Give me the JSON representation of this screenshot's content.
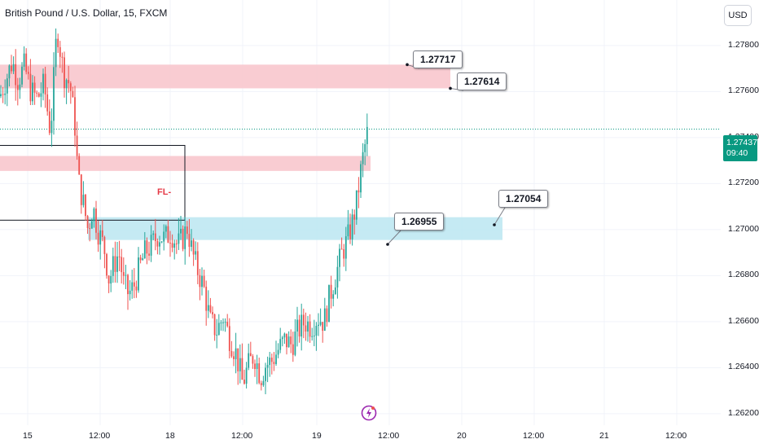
{
  "header": {
    "symbol_title": "British Pound / U.S. Dollar, 15, FXCM",
    "currency_button": "USD"
  },
  "price_badge": {
    "price": "1.27437",
    "countdown": "09:40"
  },
  "colors": {
    "up": "#26a69a",
    "down": "#ef5350",
    "supply_zone": "#f8c7cd",
    "demand_zone": "#bfe8f2",
    "current_price_line": "#089981"
  },
  "chart_data": {
    "type": "candlestick",
    "symbol": "GBPUSD",
    "timeframe": "15",
    "ylim": [
      1.2615,
      1.2792
    ],
    "y_ticks": [
      "1.27800",
      "1.27600",
      "1.27400",
      "1.27200",
      "1.27000",
      "1.26800",
      "1.26600",
      "1.26400",
      "1.26200"
    ],
    "x_ticks": [
      "15",
      "12:00",
      "18",
      "12:00",
      "19",
      "12:00",
      "20",
      "12:00",
      "21",
      "12:00"
    ],
    "current_price": 1.27437,
    "path_points": [
      [
        0,
        1.2758
      ],
      [
        8,
        1.2766
      ],
      [
        15,
        1.2773
      ],
      [
        22,
        1.2765
      ],
      [
        30,
        1.2771
      ],
      [
        38,
        1.276
      ],
      [
        46,
        1.2757
      ],
      [
        54,
        1.2763
      ],
      [
        62,
        1.2742
      ],
      [
        70,
        1.2788
      ],
      [
        78,
        1.2768
      ],
      [
        86,
        1.2763
      ],
      [
        92,
        1.2745
      ],
      [
        96,
        1.2722
      ],
      [
        102,
        1.2712
      ],
      [
        108,
        1.27
      ],
      [
        114,
        1.271
      ],
      [
        120,
        1.27
      ],
      [
        128,
        1.2692
      ],
      [
        134,
        1.2678
      ],
      [
        140,
        1.2685
      ],
      [
        146,
        1.269
      ],
      [
        152,
        1.2676
      ],
      [
        158,
        1.2672
      ],
      [
        164,
        1.2675
      ],
      [
        170,
        1.2682
      ],
      [
        178,
        1.269
      ],
      [
        186,
        1.2693
      ],
      [
        194,
        1.2698
      ],
      [
        202,
        1.2696
      ],
      [
        210,
        1.2699
      ],
      [
        218,
        1.2693
      ],
      [
        224,
        1.2696
      ],
      [
        230,
        1.2701
      ],
      [
        236,
        1.269
      ],
      [
        242,
        1.2683
      ],
      [
        250,
        1.2675
      ],
      [
        258,
        1.266
      ],
      [
        266,
        1.2656
      ],
      [
        274,
        1.2662
      ],
      [
        282,
        1.2653
      ],
      [
        290,
        1.2646
      ],
      [
        298,
        1.2633
      ],
      [
        304,
        1.264
      ],
      [
        312,
        1.2646
      ],
      [
        320,
        1.2636
      ],
      [
        326,
        1.2641
      ],
      [
        334,
        1.2643
      ],
      [
        342,
        1.2648
      ],
      [
        350,
        1.2652
      ],
      [
        358,
        1.265
      ],
      [
        366,
        1.2656
      ],
      [
        374,
        1.266
      ],
      [
        382,
        1.2658
      ],
      [
        390,
        1.2662
      ],
      [
        398,
        1.266
      ],
      [
        404,
        1.267
      ],
      [
        412,
        1.268
      ],
      [
        420,
        1.269
      ],
      [
        426,
        1.2695
      ],
      [
        432,
        1.2702
      ],
      [
        438,
        1.2712
      ],
      [
        444,
        1.2728
      ],
      [
        448,
        1.2736
      ],
      [
        452,
        1.2744
      ]
    ],
    "zones": [
      {
        "type": "supply",
        "top": 1.27717,
        "bottom": 1.27614,
        "from_x": 0,
        "to_x": 553
      },
      {
        "type": "supply",
        "top": 1.2732,
        "bottom": 1.27255,
        "from_x": 0,
        "to_x": 455
      },
      {
        "type": "demand",
        "top": 1.27054,
        "bottom": 1.26955,
        "from_x": 108,
        "to_x": 617
      }
    ],
    "rectangle": {
      "top": 1.27366,
      "bottom": 1.27041,
      "from_x": 0,
      "to_x": 227
    },
    "annotations": [
      {
        "label": "1.27717",
        "price": 1.27717,
        "anchor_x": 500
      },
      {
        "label": "1.27614",
        "price": 1.27614,
        "anchor_x": 553
      },
      {
        "label": "1.26955",
        "price": 1.26955,
        "anchor_x": 476
      },
      {
        "label": "1.27054",
        "price": 1.27054,
        "anchor_x": 607
      },
      {
        "label": "FL-",
        "price": 1.27215,
        "anchor_x": 193
      }
    ]
  }
}
